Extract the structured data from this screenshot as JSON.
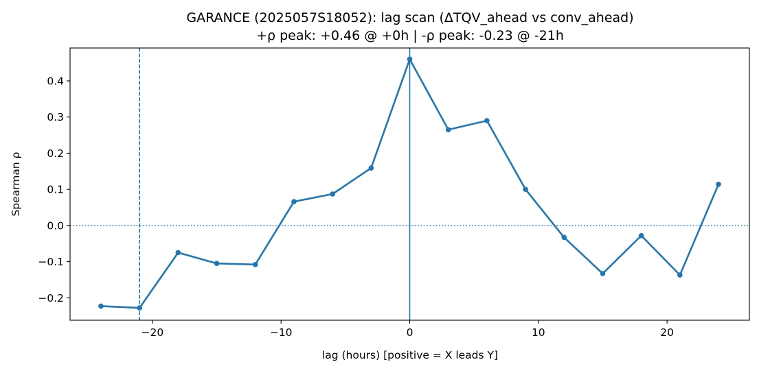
{
  "chart_data": {
    "type": "line",
    "title": "GARANCE (2025057S18052): lag scan (ΔTQV_ahead vs conv_ahead)",
    "subtitle": "+ρ peak: +0.46 @ +0h | -ρ peak: -0.23 @ -21h",
    "xlabel": "lag (hours) [positive = X leads Y]",
    "ylabel": "Spearman ρ",
    "xlim": [
      -26.4,
      26.4
    ],
    "ylim": [
      -0.262,
      0.491
    ],
    "x_ticks": [
      -20,
      -10,
      0,
      10,
      20
    ],
    "x_tick_labels": [
      "−20",
      "−10",
      "0",
      "10",
      "20"
    ],
    "y_ticks": [
      -0.2,
      -0.1,
      0.0,
      0.1,
      0.2,
      0.3,
      0.4
    ],
    "y_tick_labels": [
      "−0.2",
      "−0.1",
      "0.0",
      "0.1",
      "0.2",
      "0.3",
      "0.4"
    ],
    "grid": false,
    "series": [
      {
        "x": [
          -24,
          -21,
          -18,
          -15,
          -12,
          -9,
          -6,
          -3,
          0,
          3,
          6,
          9,
          12,
          15,
          18,
          21,
          24
        ],
        "values": [
          -0.223,
          -0.228,
          -0.075,
          -0.105,
          -0.108,
          0.066,
          0.087,
          0.159,
          0.46,
          0.265,
          0.29,
          0.1,
          -0.033,
          -0.133,
          -0.028,
          -0.137,
          0.114
        ],
        "color": "#1f77b4"
      }
    ],
    "reference_lines": [
      {
        "orientation": "vertical",
        "value": 0,
        "style": "solid",
        "color": "#1f77b4"
      },
      {
        "orientation": "vertical",
        "value": -21,
        "style": "dashed",
        "color": "#1f77b4"
      },
      {
        "orientation": "horizontal",
        "value": 0,
        "style": "dotted",
        "color": "#1f77b4"
      }
    ]
  }
}
